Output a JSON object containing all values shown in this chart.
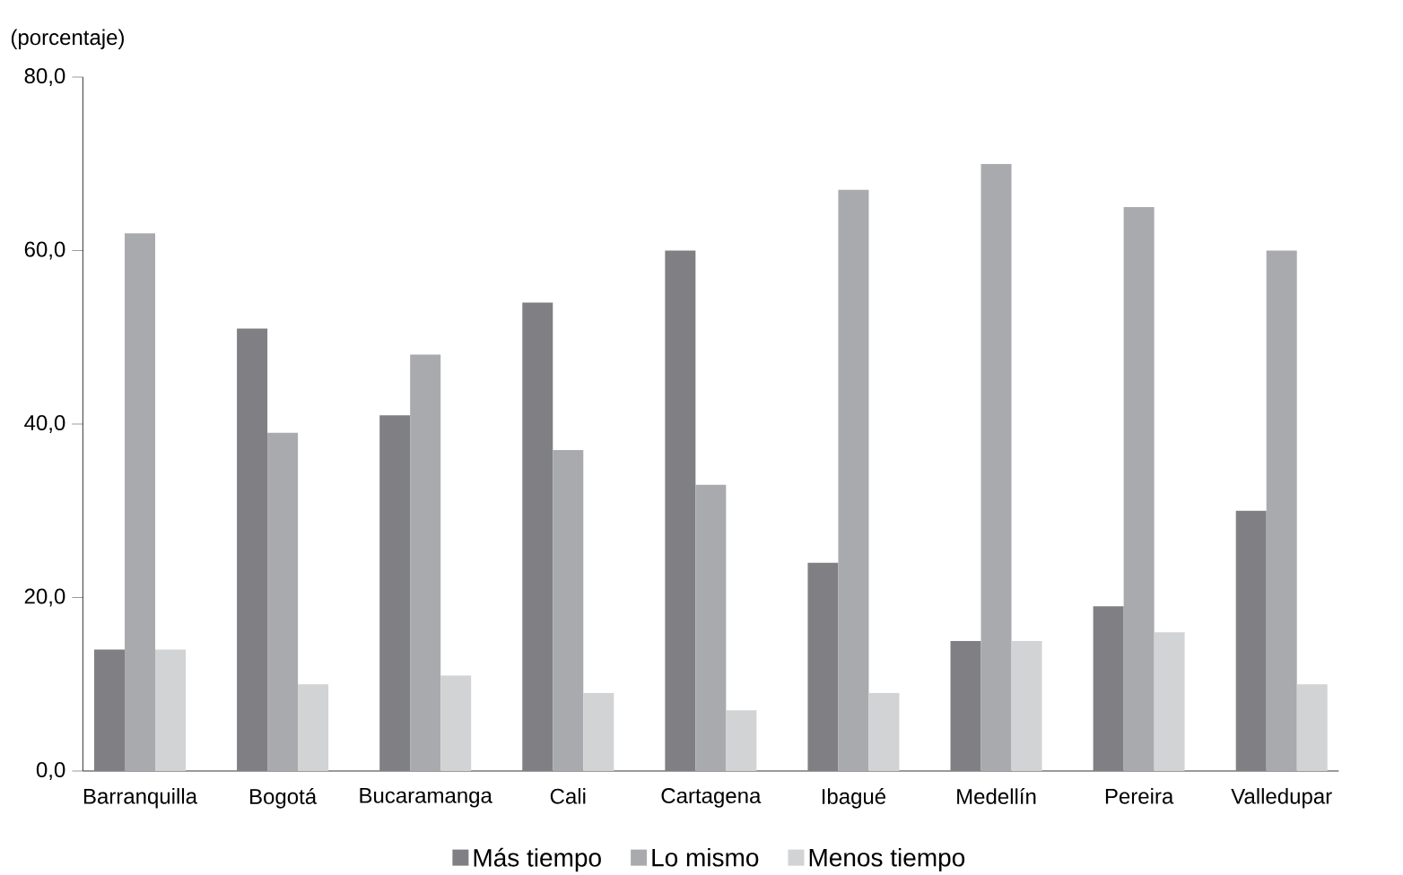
{
  "chart_data": {
    "type": "bar",
    "ylabel": "(porcentaje)",
    "categories": [
      "Barranquilla",
      "Bogotá",
      "Bucaramanga",
      "Cali",
      "Cartagena",
      "Ibagué",
      "Medellín",
      "Pereira",
      "Valledupar"
    ],
    "series": [
      {
        "name": "Más tiempo",
        "color": "#808084",
        "values": [
          14,
          51,
          41,
          54,
          60,
          24,
          15,
          19,
          30
        ]
      },
      {
        "name": "Lo mismo",
        "color": "#a9aaad",
        "values": [
          62,
          39,
          48,
          37,
          33,
          67,
          70,
          65,
          60
        ]
      },
      {
        "name": "Menos tiempo",
        "color": "#d2d3d5",
        "values": [
          14,
          10,
          11,
          9,
          7,
          9,
          15,
          16,
          10
        ]
      }
    ],
    "ylim": [
      0,
      80
    ],
    "yticks": [
      {
        "value": 0,
        "label": "0,0"
      },
      {
        "value": 20,
        "label": "20,0"
      },
      {
        "value": 40,
        "label": "40,0"
      },
      {
        "value": 60,
        "label": "60,0"
      },
      {
        "value": 80,
        "label": "80,0"
      }
    ],
    "grid": false,
    "legend": "bottom"
  }
}
